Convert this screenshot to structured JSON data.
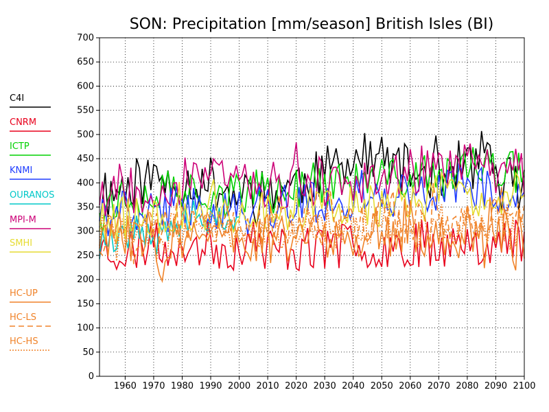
{
  "chart_data": {
    "type": "line",
    "title": "SON: Precipitation [mm/season] British Isles (BI)",
    "xlabel": "",
    "ylabel": "",
    "xlim": [
      1951,
      2100
    ],
    "ylim": [
      0,
      700
    ],
    "xticks": [
      1960,
      1970,
      1980,
      1990,
      2000,
      2010,
      2020,
      2030,
      2040,
      2050,
      2060,
      2070,
      2080,
      2090,
      2100
    ],
    "yticks": [
      0,
      50,
      100,
      150,
      200,
      250,
      300,
      350,
      400,
      450,
      500,
      550,
      600,
      650,
      700
    ],
    "grid": true,
    "legend_position": "left",
    "x_knots": [
      1951,
      1960,
      1970,
      1980,
      1990,
      2000,
      2010,
      2020,
      2030,
      2040,
      2050,
      2060,
      2070,
      2080,
      2090,
      2100
    ],
    "series": [
      {
        "name": "C4I",
        "color": "#000000",
        "dash": "solid",
        "x_start": 1951,
        "x_end": 2100,
        "base": [
          350,
          400,
          410,
          400,
          400,
          370,
          380,
          400,
          420,
          450,
          450,
          420,
          420,
          440,
          420,
          400
        ],
        "amplitude": 55,
        "seed": 11
      },
      {
        "name": "CNRM",
        "color": "#e8001c",
        "dash": "solid",
        "x_start": 1951,
        "x_end": 2100,
        "base": [
          270,
          260,
          270,
          275,
          270,
          265,
          265,
          265,
          265,
          270,
          270,
          275,
          275,
          280,
          280,
          280
        ],
        "amplitude": 50,
        "seed": 23
      },
      {
        "name": "ICTP",
        "color": "#00d000",
        "dash": "solid",
        "x_start": 1951,
        "x_end": 2100,
        "base": [
          360,
          370,
          380,
          385,
          385,
          380,
          385,
          390,
          395,
          400,
          405,
          410,
          420,
          430,
          430,
          420
        ],
        "amplitude": 45,
        "seed": 37
      },
      {
        "name": "KNMI",
        "color": "#1e3cff",
        "dash": "solid",
        "x_start": 1951,
        "x_end": 2100,
        "base": [
          330,
          340,
          345,
          350,
          350,
          345,
          350,
          355,
          360,
          365,
          370,
          375,
          380,
          385,
          380,
          360
        ],
        "amplitude": 45,
        "seed": 41
      },
      {
        "name": "OURANOS",
        "color": "#00c8c8",
        "dash": "solid",
        "x_start": 1951,
        "x_end": 2000,
        "base": [
          290,
          300,
          310,
          320,
          330,
          330
        ],
        "amplitude": 40,
        "seed": 53
      },
      {
        "name": "MPI-M",
        "color": "#cc0077",
        "dash": "solid",
        "x_start": 1951,
        "x_end": 2100,
        "base": [
          380,
          390,
          395,
          400,
          400,
          395,
          395,
          400,
          405,
          410,
          415,
          420,
          425,
          430,
          430,
          425
        ],
        "amplitude": 55,
        "seed": 67
      },
      {
        "name": "SMHI",
        "color": "#e6dc32",
        "dash": "solid",
        "x_start": 1951,
        "x_end": 2100,
        "base": [
          320,
          330,
          335,
          340,
          340,
          340,
          345,
          345,
          350,
          355,
          360,
          360,
          365,
          370,
          375,
          380
        ],
        "amplitude": 45,
        "seed": 79
      },
      {
        "name": "HC-UP",
        "color": "#f08228",
        "dash": "solid",
        "x_start": 1951,
        "x_end": 2100,
        "base": [
          290,
          290,
          290,
          290,
          285,
          280,
          285,
          290,
          290,
          295,
          295,
          295,
          295,
          295,
          295,
          290
        ],
        "amplitude": 55,
        "seed": 83
      },
      {
        "name": "HC-LS",
        "color": "#f08228",
        "dash": "8,5",
        "x_start": 1951,
        "x_end": 2100,
        "base": [
          300,
          305,
          310,
          310,
          310,
          305,
          310,
          310,
          315,
          315,
          320,
          320,
          320,
          325,
          325,
          320
        ],
        "amplitude": 45,
        "seed": 97
      },
      {
        "name": "HC-HS",
        "color": "#f08228",
        "dash": "2,2",
        "x_start": 1951,
        "x_end": 2100,
        "base": [
          290,
          295,
          300,
          300,
          300,
          295,
          300,
          300,
          305,
          305,
          310,
          310,
          310,
          315,
          315,
          310
        ],
        "amplitude": 45,
        "seed": 101
      }
    ]
  }
}
